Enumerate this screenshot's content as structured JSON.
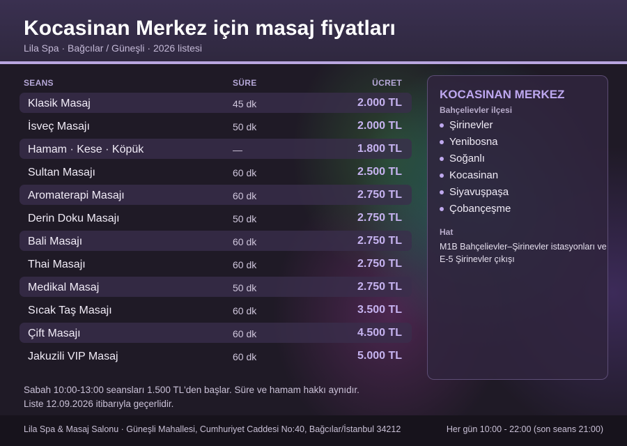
{
  "header": {
    "title": "Kocasinan Merkez için masaj fiyatları",
    "subtitle": "Lila Spa · Bağcılar / Güneşli · 2026 listesi"
  },
  "table": {
    "columns": {
      "seans": "SEANS",
      "sure": "SÜRE",
      "ucret": "ÜCRET"
    },
    "rows": [
      {
        "name": "Klasik Masaj",
        "duration": "45 dk",
        "price": "2.000 TL"
      },
      {
        "name": "İsveç Masajı",
        "duration": "50 dk",
        "price": "2.000 TL"
      },
      {
        "name": "Hamam · Kese · Köpük",
        "duration": "—",
        "price": "1.800 TL"
      },
      {
        "name": "Sultan Masajı",
        "duration": "60 dk",
        "price": "2.500 TL"
      },
      {
        "name": "Aromaterapi Masajı",
        "duration": "60 dk",
        "price": "2.750 TL"
      },
      {
        "name": "Derin Doku Masajı",
        "duration": "50 dk",
        "price": "2.750 TL"
      },
      {
        "name": "Bali Masajı",
        "duration": "60 dk",
        "price": "2.750 TL"
      },
      {
        "name": "Thai Masajı",
        "duration": "60 dk",
        "price": "2.750 TL"
      },
      {
        "name": "Medikal Masaj",
        "duration": "50 dk",
        "price": "2.750 TL"
      },
      {
        "name": "Sıcak Taş Masajı",
        "duration": "60 dk",
        "price": "3.500 TL"
      },
      {
        "name": "Çift Masajı",
        "duration": "60 dk",
        "price": "4.500 TL"
      },
      {
        "name": "Jakuzili VIP Masaj",
        "duration": "60 dk",
        "price": "5.000 TL"
      }
    ]
  },
  "notes": {
    "line1": "Sabah 10:00-13:00 seansları 1.500 TL'den başlar. Süre ve hamam hakkı aynıdır.",
    "line2": "Liste 12.09.2026 itibarıyla geçerlidir."
  },
  "panel": {
    "title": "KOCASINAN MERKEZ",
    "subtitle": "Bahçelievler ilçesi",
    "districts": [
      "Şirinevler",
      "Yenibosna",
      "Soğanlı",
      "Kocasinan",
      "Siyavuşpaşa",
      "Çobançeşme"
    ],
    "line_heading": "Hat",
    "line_text": "M1B Bahçelievler–Şirinevler istasyonları ve E-5 Şirinevler çıkışı"
  },
  "footer": {
    "address": "Lila Spa & Masaj Salonu · Güneşli Mahallesi, Cumhuriyet Caddesi No:40, Bağcılar/İstanbul 34212",
    "hours": "Her gün 10:00 - 22:00 (son seans 21:00)"
  },
  "colors": {
    "accent": "#b9a6e0",
    "price": "#c6b3f0",
    "header_bg": "#3a3050",
    "row_alt_bg": "#3a2e4c"
  }
}
